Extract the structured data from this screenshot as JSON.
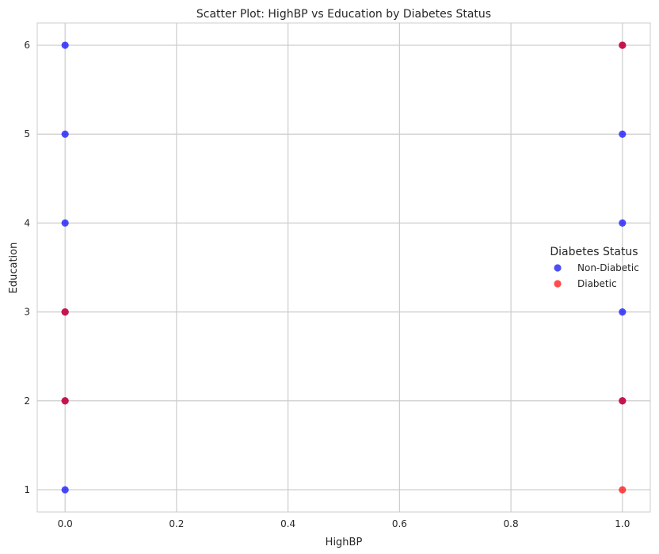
{
  "chart_data": {
    "type": "scatter",
    "title": "Scatter Plot: HighBP vs Education by Diabetes Status",
    "xlabel": "HighBP",
    "ylabel": "Education",
    "xlim": [
      -0.05,
      1.05
    ],
    "ylim": [
      0.75,
      6.25
    ],
    "x_ticks": [
      0.0,
      0.2,
      0.4,
      0.6,
      0.8,
      1.0
    ],
    "x_tick_labels": [
      "0.0",
      "0.2",
      "0.4",
      "0.6",
      "0.8",
      "1.0"
    ],
    "y_ticks": [
      1,
      2,
      3,
      4,
      5,
      6
    ],
    "y_tick_labels": [
      "1",
      "2",
      "3",
      "4",
      "5",
      "6"
    ],
    "grid": true,
    "legend": {
      "title": "Diabetes Status",
      "placement": "center-right",
      "entries": [
        "Non-Diabetic",
        "Diabetic"
      ]
    },
    "series": [
      {
        "name": "Non-Diabetic",
        "color": "#0000ff",
        "points": [
          {
            "x": 0,
            "y": 1
          },
          {
            "x": 0,
            "y": 2
          },
          {
            "x": 0,
            "y": 3
          },
          {
            "x": 0,
            "y": 4
          },
          {
            "x": 0,
            "y": 5
          },
          {
            "x": 0,
            "y": 6
          },
          {
            "x": 1,
            "y": 2
          },
          {
            "x": 1,
            "y": 3
          },
          {
            "x": 1,
            "y": 4
          },
          {
            "x": 1,
            "y": 5
          },
          {
            "x": 1,
            "y": 6
          }
        ]
      },
      {
        "name": "Diabetic",
        "color": "#ff0000",
        "points": [
          {
            "x": 0,
            "y": 2
          },
          {
            "x": 0,
            "y": 3
          },
          {
            "x": 1,
            "y": 1
          },
          {
            "x": 1,
            "y": 2
          },
          {
            "x": 1,
            "y": 6
          }
        ]
      }
    ],
    "legend_colors": [
      "#4f4ff0",
      "#ff4d4d"
    ],
    "grid_color": "#cccccc",
    "point_alpha": 0.7
  }
}
